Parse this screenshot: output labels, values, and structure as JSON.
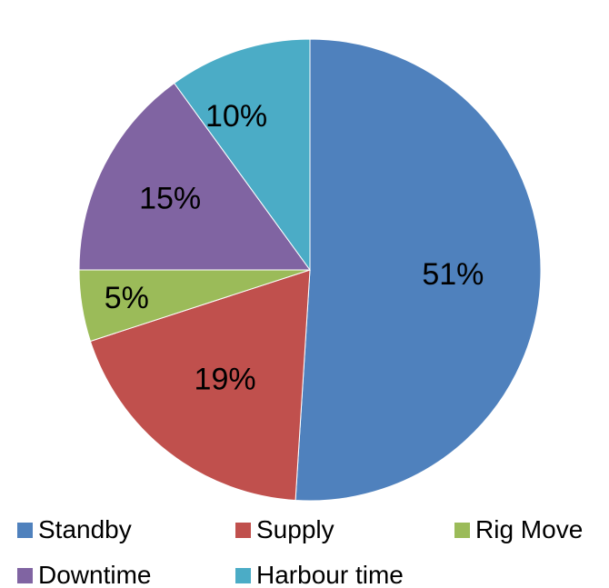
{
  "chart_data": {
    "type": "pie",
    "categories": [
      "Standby",
      "Supply",
      "Rig Move",
      "Downtime",
      "Harbour time"
    ],
    "values": [
      51,
      19,
      5,
      15,
      10
    ],
    "labels": [
      "51%",
      "19%",
      "5%",
      "15%",
      "10%"
    ],
    "colors": [
      "#4f81bd",
      "#c0504d",
      "#9bbb59",
      "#8064a2",
      "#4bacc6"
    ],
    "legend_position": "bottom",
    "start": "12 o'clock",
    "direction": "clockwise"
  }
}
